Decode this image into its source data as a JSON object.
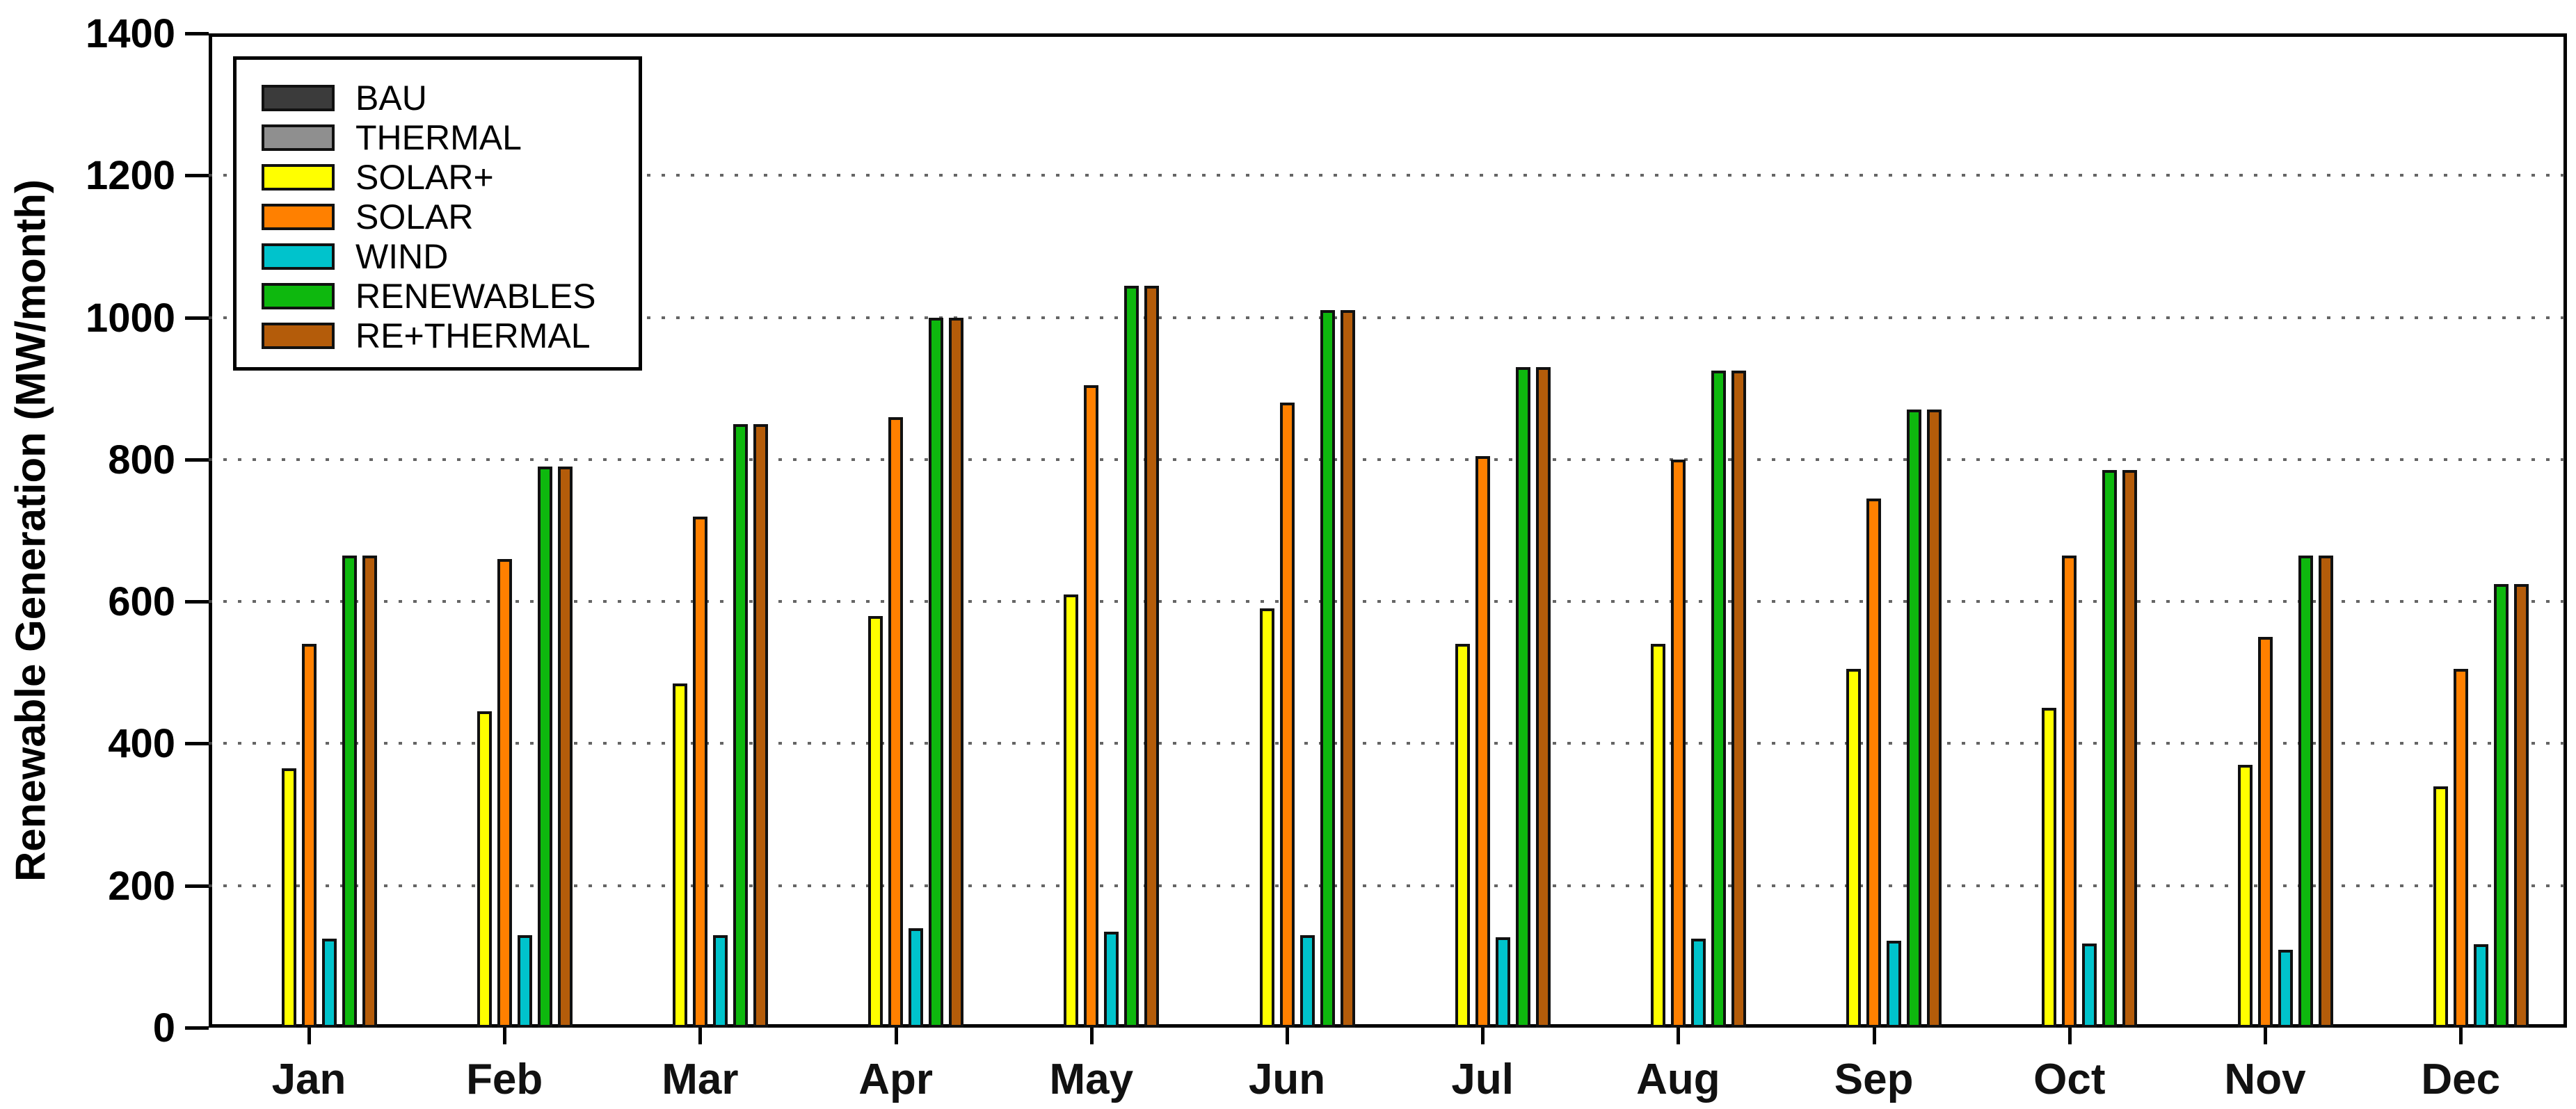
{
  "chart_data": {
    "type": "bar",
    "title": "",
    "xlabel": "",
    "ylabel": "Renewable Generation (MW/month)",
    "ylim": [
      0,
      1400
    ],
    "ytick_interval": 200,
    "yticks": [
      0,
      200,
      400,
      600,
      800,
      1000,
      1200,
      1400
    ],
    "grid": "horizontal dotted lines at 200-1200",
    "legend_position": "upper-left",
    "frame": "full box",
    "categories": [
      "Jan",
      "Feb",
      "Mar",
      "Apr",
      "May",
      "Jun",
      "Jul",
      "Aug",
      "Sep",
      "Oct",
      "Nov",
      "Dec"
    ],
    "series": [
      {
        "name": "BAU",
        "color": "#3b3b3b",
        "values": [
          0,
          0,
          0,
          0,
          0,
          0,
          0,
          0,
          0,
          0,
          0,
          0
        ]
      },
      {
        "name": "THERMAL",
        "color": "#8f8f8f",
        "values": [
          0,
          0,
          0,
          0,
          0,
          0,
          0,
          0,
          0,
          0,
          0,
          0
        ]
      },
      {
        "name": "SOLAR+",
        "color": "#ffff00",
        "values": [
          365,
          445,
          485,
          580,
          610,
          590,
          540,
          540,
          505,
          450,
          370,
          340
        ]
      },
      {
        "name": "SOLAR",
        "color": "#ff8000",
        "values": [
          540,
          660,
          720,
          860,
          905,
          880,
          805,
          800,
          745,
          665,
          550,
          505
        ]
      },
      {
        "name": "WIND",
        "color": "#00c3cc",
        "values": [
          125,
          130,
          130,
          140,
          135,
          130,
          127,
          125,
          122,
          118,
          110,
          117
        ]
      },
      {
        "name": "RENEWABLES",
        "color": "#0eb80e",
        "values": [
          665,
          790,
          850,
          1000,
          1045,
          1010,
          930,
          925,
          870,
          785,
          665,
          625
        ]
      },
      {
        "name": "RE+THERMAL",
        "color": "#b45c0a",
        "values": [
          665,
          790,
          850,
          1000,
          1045,
          1010,
          930,
          925,
          870,
          785,
          665,
          625
        ]
      }
    ]
  },
  "layout_colors": {
    "background": "#ffffff",
    "axis": "#000000",
    "gridline": "#4a4a4a",
    "bar_outline": "#111111"
  }
}
